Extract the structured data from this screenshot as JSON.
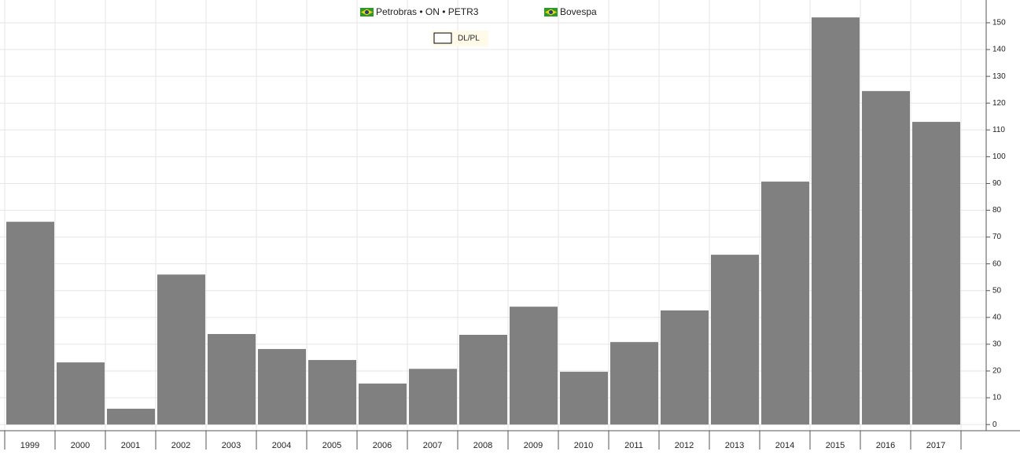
{
  "chart_data": {
    "type": "bar",
    "legend": [
      "Petrobras • ON • PETR3",
      "Bovespa"
    ],
    "indicator": "DL/PL",
    "categories": [
      "1999",
      "2000",
      "2001",
      "2002",
      "2003",
      "2004",
      "2005",
      "2006",
      "2007",
      "2008",
      "2009",
      "2010",
      "2011",
      "2012",
      "2013",
      "2014",
      "2015",
      "2016",
      "2017"
    ],
    "values": [
      75.7,
      23.2,
      5.9,
      56,
      33.8,
      28.2,
      24.1,
      15.3,
      20.8,
      33.5,
      44,
      19.7,
      30.8,
      42.6,
      63.4,
      90.7,
      152,
      124.5,
      113
    ],
    "color": "#808080",
    "ylim": [
      -2.3,
      158.5
    ],
    "yticks": [
      0,
      10,
      20,
      30,
      40,
      50,
      60,
      70,
      80,
      90,
      100,
      110,
      120,
      130,
      140,
      150
    ],
    "grid": true
  }
}
